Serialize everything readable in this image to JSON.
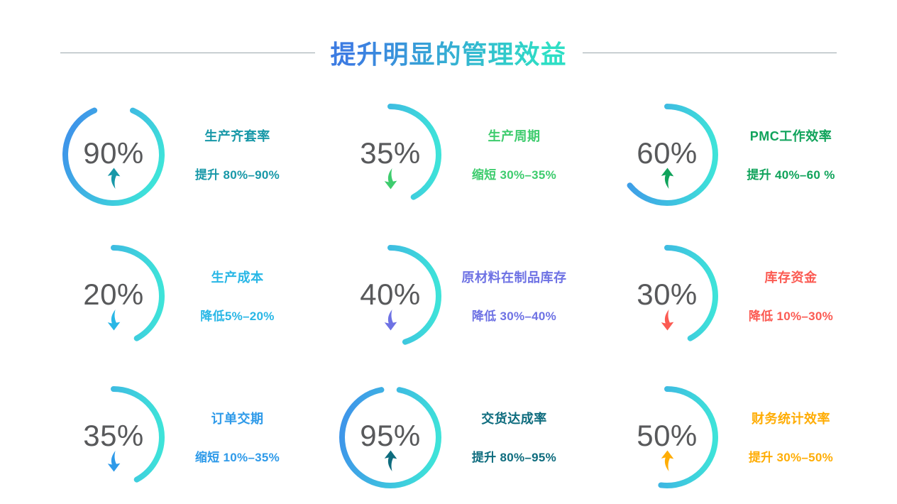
{
  "header": {
    "title": "提升明显的管理效益"
  },
  "colors": {
    "ring_gradient_start": "#3E96E9",
    "ring_gradient_end": "#3EE3D9",
    "title_gradient_start": "#3C7CE2",
    "title_gradient_end": "#2EDEC5",
    "divider": "#9AA7AC",
    "percent_text": "#58595B"
  },
  "metrics": [
    {
      "percent_label": "90%",
      "arc_percent": 87,
      "direction": "up",
      "title": "生产齐套率",
      "description": "提升 80%–90%",
      "accent": "#1898A8"
    },
    {
      "percent_label": "35%",
      "arc_percent": 42,
      "direction": "down",
      "title": "生产周期",
      "description": "缩短 30%–35%",
      "accent": "#3ECC6E"
    },
    {
      "percent_label": "60%",
      "arc_percent": 64,
      "direction": "up",
      "title": "PMC工作效率",
      "description": "提升 40%–60 %",
      "accent": "#10A35B"
    },
    {
      "percent_label": "20%",
      "arc_percent": 42,
      "direction": "down",
      "title": "生产成本",
      "description": "降低5%–20%",
      "accent": "#29B7E6"
    },
    {
      "percent_label": "40%",
      "arc_percent": 45,
      "direction": "down",
      "title": "原材料在制品库存",
      "description": "降低 30%–40%",
      "accent": "#6E72E4"
    },
    {
      "percent_label": "30%",
      "arc_percent": 42,
      "direction": "down",
      "title": "库存资金",
      "description": "降低 10%–30%",
      "accent": "#FB5A52"
    },
    {
      "percent_label": "35%",
      "arc_percent": 42,
      "direction": "down",
      "title": "订单交期",
      "description": "缩短 10%–35%",
      "accent": "#2E9AE9"
    },
    {
      "percent_label": "95%",
      "arc_percent": 94,
      "direction": "up",
      "title": "交货达成率",
      "description": "提升 80%–95%",
      "accent": "#0E6C7E"
    },
    {
      "percent_label": "50%",
      "arc_percent": 52,
      "direction": "up",
      "title": "财务统计效率",
      "description": "提升 30%–50%",
      "accent": "#FFAD05"
    }
  ],
  "chart_data": {
    "type": "pie",
    "variant": "donut-gauge-grid",
    "title": "提升明显的管理效益",
    "categories": [
      "生产齐套率",
      "生产周期",
      "PMC工作效率",
      "生产成本",
      "原材料在制品库存",
      "库存资金",
      "订单交期",
      "交货达成率",
      "财务统计效率"
    ],
    "values": [
      90,
      35,
      60,
      20,
      40,
      30,
      35,
      95,
      50
    ],
    "directions": [
      "up",
      "down",
      "up",
      "down",
      "down",
      "down",
      "down",
      "up",
      "up"
    ],
    "annotations": [
      "提升 80%–90%",
      "缩短 30%–35%",
      "提升 40%–60 %",
      "降低5%–20%",
      "降低 30%–40%",
      "降低 10%–30%",
      "缩短 10%–35%",
      "提升 80%–95%",
      "提升 30%–50%"
    ],
    "legend_position": "none",
    "grid": false
  }
}
